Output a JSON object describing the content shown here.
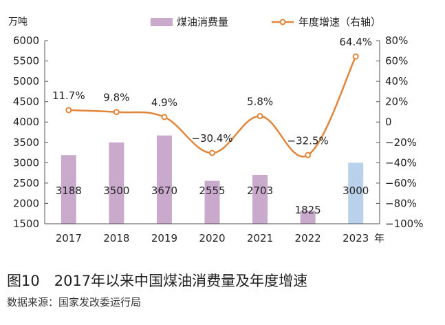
{
  "chart_data": {
    "type": "bar+line",
    "categories": [
      "2017",
      "2018",
      "2019",
      "2020",
      "2021",
      "2022",
      "2023"
    ],
    "x_unit": "年",
    "series": [
      {
        "name": "煤油消费量",
        "type": "bar",
        "axis": "left",
        "values": [
          3188,
          3500,
          3670,
          2555,
          2703,
          1825,
          3000
        ],
        "labels": [
          "3188",
          "3500",
          "3670",
          "2555",
          "2703",
          "1825",
          "3000"
        ],
        "color": "#c9a9cc",
        "highlight_color": "#b9d1ea",
        "highlight_index": 6
      },
      {
        "name": "年度增速（右轴）",
        "type": "line",
        "axis": "right",
        "values": [
          11.7,
          9.8,
          4.9,
          -30.4,
          5.8,
          -32.5,
          64.4
        ],
        "labels": [
          "11.7%",
          "9.8%",
          "4.9%",
          "−30.4%",
          "5.8%",
          "−32.5%",
          "64.4%"
        ],
        "color": "#e2853b"
      }
    ],
    "left_axis": {
      "unit": "万吨",
      "min": 1500,
      "max": 6000,
      "ticks": [
        1500,
        2000,
        2500,
        3000,
        3500,
        4000,
        4500,
        5000,
        5500,
        6000
      ]
    },
    "right_axis": {
      "min": -100,
      "max": 80,
      "ticks": [
        80,
        60,
        40,
        20,
        0,
        -20,
        -40,
        -60,
        -80,
        -100
      ],
      "tick_labels": [
        "80%",
        "60%",
        "40%",
        "20%",
        "0",
        "−20%",
        "−40%",
        "−60%",
        "−80%",
        "−100%"
      ]
    },
    "legend_position": "top"
  },
  "caption": {
    "title": "图10　2017年以来中国煤油消费量及年度增速",
    "source": "数据来源：国家发改委运行局"
  }
}
